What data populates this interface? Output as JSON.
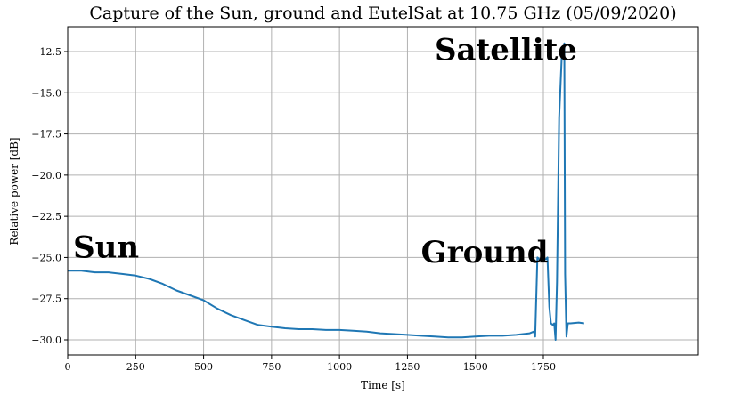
{
  "chart_data": {
    "type": "line",
    "title": "Capture of the Sun, ground and EutelSat at 10.75 GHz (05/09/2020)",
    "xlabel": "Time [s]",
    "ylabel": "Relative power [dB]",
    "xlim": [
      0,
      1990
    ],
    "ylim": [
      -31,
      -11.5
    ],
    "xticks": [
      0,
      250,
      500,
      750,
      1000,
      1250,
      1500,
      1750
    ],
    "xtick_labels": [
      "0",
      "250",
      "500",
      "750",
      "1000",
      "1250",
      "1500",
      "1750"
    ],
    "yticks": [
      -12.5,
      -15.0,
      -17.5,
      -20.0,
      -22.5,
      -25.0,
      -27.5,
      -30.0
    ],
    "ytick_labels": [
      "−12.5",
      "−15.0",
      "−17.5",
      "−20.0",
      "−22.5",
      "−25.0",
      "−27.5",
      "−30.0"
    ],
    "grid": true,
    "line_color": "#1f77b4",
    "series": [
      {
        "name": "Relative power",
        "x": [
          0,
          50,
          100,
          150,
          200,
          250,
          300,
          350,
          400,
          450,
          500,
          550,
          600,
          650,
          700,
          750,
          800,
          850,
          900,
          950,
          1000,
          1050,
          1100,
          1150,
          1200,
          1250,
          1300,
          1350,
          1400,
          1450,
          1500,
          1550,
          1600,
          1650,
          1700,
          1715,
          1720,
          1728,
          1735,
          1760,
          1765,
          1772,
          1778,
          1785,
          1790,
          1795,
          1800,
          1808,
          1812,
          1818,
          1822,
          1827,
          1830,
          1835,
          1840,
          1850,
          1880,
          1900
        ],
        "y": [
          -25.8,
          -25.8,
          -25.9,
          -25.9,
          -26.0,
          -26.1,
          -26.3,
          -26.6,
          -27.0,
          -27.3,
          -27.6,
          -28.1,
          -28.5,
          -28.8,
          -29.1,
          -29.2,
          -29.3,
          -29.35,
          -29.35,
          -29.4,
          -29.4,
          -29.45,
          -29.5,
          -29.6,
          -29.65,
          -29.7,
          -29.75,
          -29.8,
          -29.85,
          -29.85,
          -29.8,
          -29.75,
          -29.75,
          -29.7,
          -29.6,
          -29.5,
          -29.8,
          -25.0,
          -25.1,
          -25.1,
          -25.0,
          -28.0,
          -29.0,
          -29.1,
          -29.0,
          -30.0,
          -26.5,
          -16.5,
          -15.0,
          -12.7,
          -12.8,
          -12.0,
          -26.0,
          -29.8,
          -29.0,
          -29.0,
          -28.95,
          -29.0
        ]
      }
    ],
    "annotations": [
      {
        "text": "Sun",
        "x": 20,
        "y": -25.0
      },
      {
        "text": "Ground",
        "x": 1300,
        "y": -25.3
      },
      {
        "text": "Satellite",
        "x": 1350,
        "y": -13.0
      }
    ]
  }
}
